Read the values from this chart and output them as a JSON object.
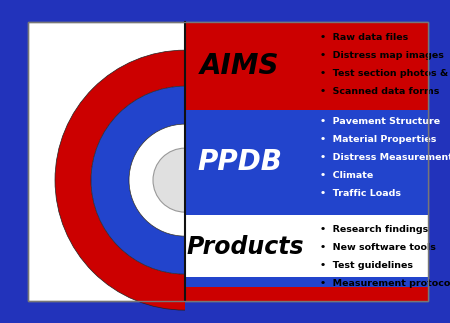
{
  "bg_outer": "#2233bb",
  "bg_inner": "#ffffff",
  "aims_color": "#cc0000",
  "ppdb_color": "#2244cc",
  "white": "#ffffff",
  "aims_label": "AIMS",
  "ppdb_label": "PPDB",
  "products_label": "Products",
  "aims_items": [
    "Raw data files",
    "Distress map images",
    "Test section photos & videos",
    "Scanned data forms"
  ],
  "ppdb_items": [
    "Pavement Structure",
    "Material Properties",
    "Distress Measurements",
    "Climate",
    "Traffic Loads"
  ],
  "products_items": [
    "Research findings",
    "New software tools",
    "Test guidelines",
    "Measurement protocols"
  ],
  "aims_text_color": "#000000",
  "ppdb_text_color": "#ffffff",
  "products_text_color": "#000000",
  "outer_border": "#2233bb",
  "inner_border": "#888888",
  "divider_color": "#111111",
  "center_hole_color": "#cccccc",
  "figw": 4.5,
  "figh": 3.23,
  "dpi": 100
}
